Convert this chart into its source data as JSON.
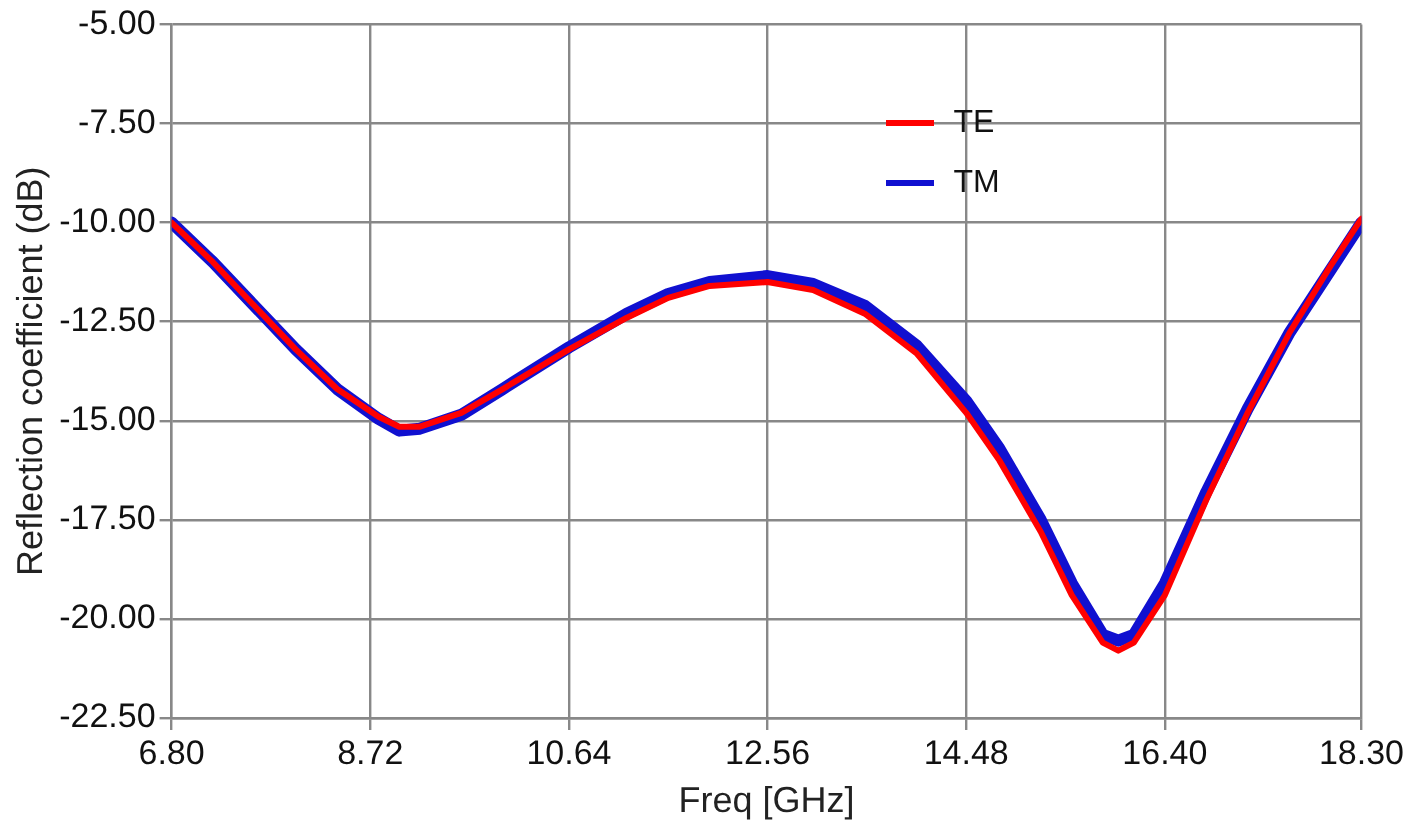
{
  "chart_data": {
    "type": "line",
    "xlabel": "Freq [GHz]",
    "ylabel": "Reflection coefficient (dB)",
    "xlim": [
      6.8,
      18.3
    ],
    "xticks": [
      {
        "value": 6.8,
        "label": "6.80"
      },
      {
        "value": 8.72,
        "label": "8.72"
      },
      {
        "value": 10.64,
        "label": "10.64"
      },
      {
        "value": 12.56,
        "label": "12.56"
      },
      {
        "value": 14.48,
        "label": "14.48"
      },
      {
        "value": 16.4,
        "label": "16.40"
      },
      {
        "value": 18.3,
        "label": "18.30"
      }
    ],
    "ylim": [
      -22.5,
      -5
    ],
    "yticks": [
      {
        "value": -22.5,
        "label": "-22.50"
      },
      {
        "value": -20,
        "label": "-20.00"
      },
      {
        "value": -17.5,
        "label": "-17.50"
      },
      {
        "value": -15,
        "label": "-15.00"
      },
      {
        "value": -12.5,
        "label": "-12.50"
      },
      {
        "value": -10,
        "label": "-10.00"
      },
      {
        "value": -7.5,
        "label": "-7.50"
      },
      {
        "value": -5,
        "label": "-5.00"
      }
    ],
    "grid": true,
    "legend": "top right",
    "marker": "none",
    "line_style": "solid",
    "x": [
      6.8,
      7.2,
      7.6,
      8.0,
      8.4,
      8.8,
      9.0,
      9.2,
      9.6,
      10.0,
      10.64,
      11.2,
      11.6,
      12.0,
      12.56,
      13.0,
      13.5,
      14.0,
      14.48,
      14.8,
      15.2,
      15.5,
      15.8,
      15.95,
      16.1,
      16.4,
      16.8,
      17.2,
      17.6,
      18.0,
      18.3
    ],
    "series": [
      {
        "name": "TM",
        "color": "#1010d0",
        "values": [
          -10.0,
          -11.0,
          -12.1,
          -13.2,
          -14.2,
          -14.95,
          -15.25,
          -15.2,
          -14.85,
          -14.2,
          -13.15,
          -12.3,
          -11.8,
          -11.5,
          -11.35,
          -11.55,
          -12.1,
          -13.1,
          -14.5,
          -15.7,
          -17.5,
          -19.1,
          -20.4,
          -20.55,
          -20.4,
          -19.1,
          -16.8,
          -14.7,
          -12.8,
          -11.2,
          -10.0
        ]
      },
      {
        "name": "TE",
        "color": "#ff0000",
        "values": [
          -10.0,
          -11.0,
          -12.1,
          -13.2,
          -14.2,
          -14.9,
          -15.15,
          -15.15,
          -14.8,
          -14.2,
          -13.2,
          -12.4,
          -11.9,
          -11.6,
          -11.5,
          -11.7,
          -12.3,
          -13.3,
          -14.8,
          -16.0,
          -17.8,
          -19.4,
          -20.6,
          -20.8,
          -20.6,
          -19.4,
          -17.0,
          -14.8,
          -12.8,
          -11.1,
          -9.9
        ]
      }
    ]
  }
}
